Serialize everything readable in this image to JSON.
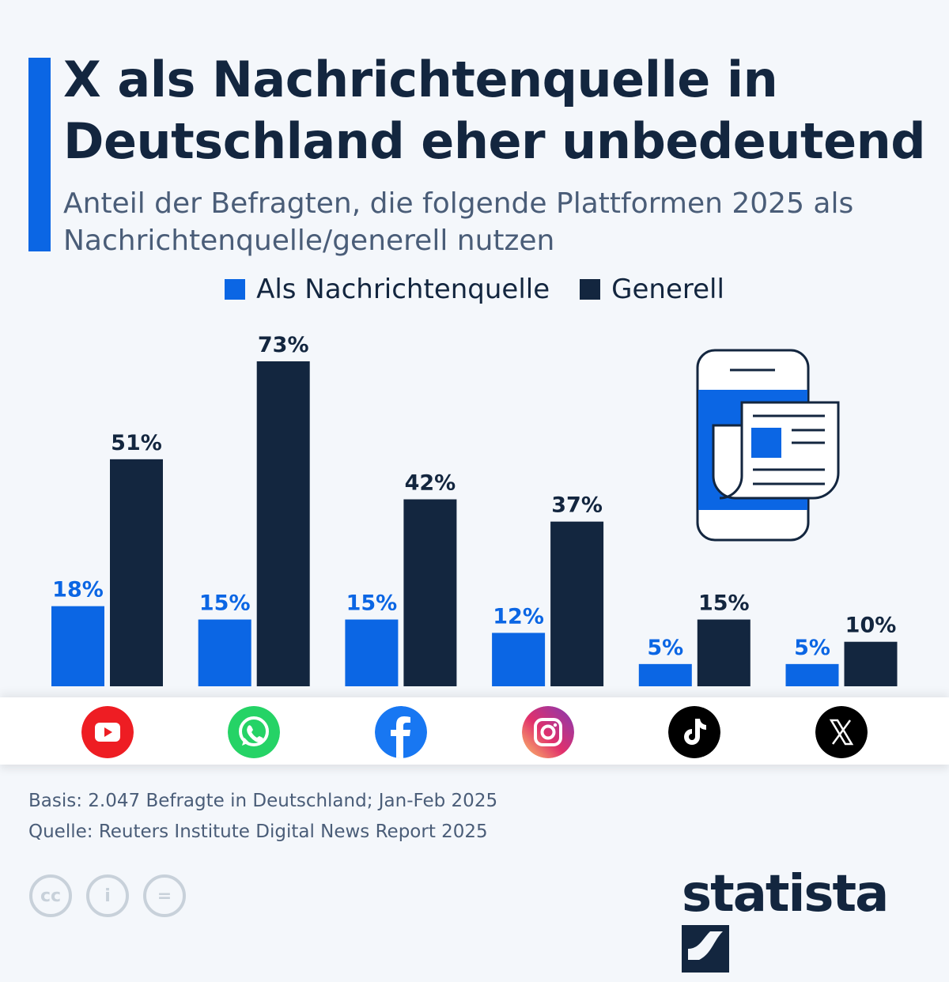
{
  "header": {
    "title": "X als Nachrichtenquelle in Deutschland eher unbedeutend",
    "subtitle": "Anteil der Befragten, die folgende Plattformen 2025 als Nachrichtenquelle/generell nutzen"
  },
  "chart_data": {
    "type": "bar",
    "categories": [
      "YouTube",
      "WhatsApp",
      "Facebook",
      "Instagram",
      "TikTok",
      "X"
    ],
    "series": [
      {
        "name": "Als Nachrichtenquelle",
        "color": "#0b66e4",
        "values": [
          18,
          15,
          15,
          12,
          5,
          5
        ]
      },
      {
        "name": "Generell",
        "color": "#13263f",
        "values": [
          51,
          73,
          42,
          37,
          15,
          10
        ]
      }
    ],
    "unit": "%",
    "ylim": [
      0,
      80
    ],
    "grid": false,
    "legend": "top-center",
    "category_icons": [
      "youtube-icon",
      "whatsapp-icon",
      "facebook-icon",
      "instagram-icon",
      "tiktok-icon",
      "x-icon"
    ]
  },
  "footer": {
    "basis": "Basis: 2.047 Befragte in Deutschland; Jan-Feb 2025",
    "source": "Quelle: Reuters Institute Digital News Report 2025",
    "brand": "statista"
  }
}
